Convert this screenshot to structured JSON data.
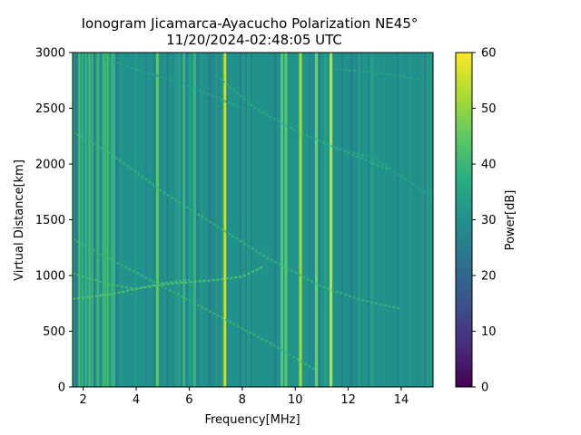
{
  "chart_data": {
    "type": "heatmap",
    "title": "Ionogram Jicamarca-Ayacucho Polarization NE45°",
    "subtitle": "11/20/2024-02:48:05 UTC",
    "xlabel": "Frequency[MHz]",
    "ylabel": "Virtual Distance[km]",
    "xlim": [
      1.6,
      15.2
    ],
    "ylim": [
      0,
      3000
    ],
    "x_ticks": [
      2,
      4,
      6,
      8,
      10,
      12,
      14
    ],
    "y_ticks": [
      0,
      500,
      1000,
      1500,
      2000,
      2500,
      3000
    ],
    "colorbar": {
      "label": "Power[dB]",
      "range": [
        0,
        60
      ],
      "ticks": [
        0,
        10,
        20,
        30,
        40,
        50,
        60
      ],
      "colormap": "viridis"
    },
    "background_power_db": 30,
    "bright_vertical_bands_mhz": [
      {
        "freq": 4.8,
        "power": 45
      },
      {
        "freq": 5.8,
        "power": 40
      },
      {
        "freq": 6.2,
        "power": 40
      },
      {
        "freq": 7.35,
        "power": 55
      },
      {
        "freq": 9.5,
        "power": 45
      },
      {
        "freq": 9.65,
        "power": 45
      },
      {
        "freq": 10.2,
        "power": 52
      },
      {
        "freq": 10.8,
        "power": 48
      },
      {
        "freq": 11.35,
        "power": 55
      }
    ],
    "traces": [
      {
        "points": [
          [
            1.6,
            790
          ],
          [
            3,
            830
          ],
          [
            4,
            880
          ],
          [
            5,
            920
          ],
          [
            6,
            940
          ],
          [
            7,
            960
          ],
          [
            8,
            990
          ],
          [
            8.8,
            1080
          ]
        ],
        "power": 45
      },
      {
        "points": [
          [
            1.6,
            1020
          ],
          [
            3,
            920
          ],
          [
            4,
            880
          ],
          [
            5,
            930
          ],
          [
            6,
            960
          ]
        ],
        "power": 42
      },
      {
        "points": [
          [
            1.6,
            1330
          ],
          [
            3,
            1150
          ],
          [
            5,
            900
          ],
          [
            7,
            650
          ],
          [
            9,
            400
          ],
          [
            10.8,
            150
          ]
        ],
        "power": 40
      },
      {
        "points": [
          [
            1.6,
            2290
          ],
          [
            3,
            2100
          ],
          [
            5,
            1750
          ],
          [
            7,
            1450
          ],
          [
            9,
            1150
          ],
          [
            11,
            900
          ],
          [
            12.5,
            780
          ],
          [
            14,
            700
          ]
        ],
        "power": 40
      },
      {
        "points": [
          [
            7,
            2800
          ],
          [
            8.5,
            2500
          ],
          [
            10,
            2300
          ],
          [
            12,
            2100
          ],
          [
            13.5,
            1950
          ]
        ],
        "power": 38
      },
      {
        "points": [
          [
            2.8,
            2950
          ],
          [
            4,
            2850
          ],
          [
            6,
            2700
          ],
          [
            8,
            2500
          ]
        ],
        "power": 36
      },
      {
        "points": [
          [
            11.5,
            2150
          ],
          [
            13,
            2050
          ],
          [
            15.2,
            1700
          ]
        ],
        "power": 36
      },
      {
        "points": [
          [
            11.5,
            2850
          ],
          [
            13,
            2820
          ],
          [
            14.8,
            2760
          ]
        ],
        "power": 36
      }
    ]
  }
}
